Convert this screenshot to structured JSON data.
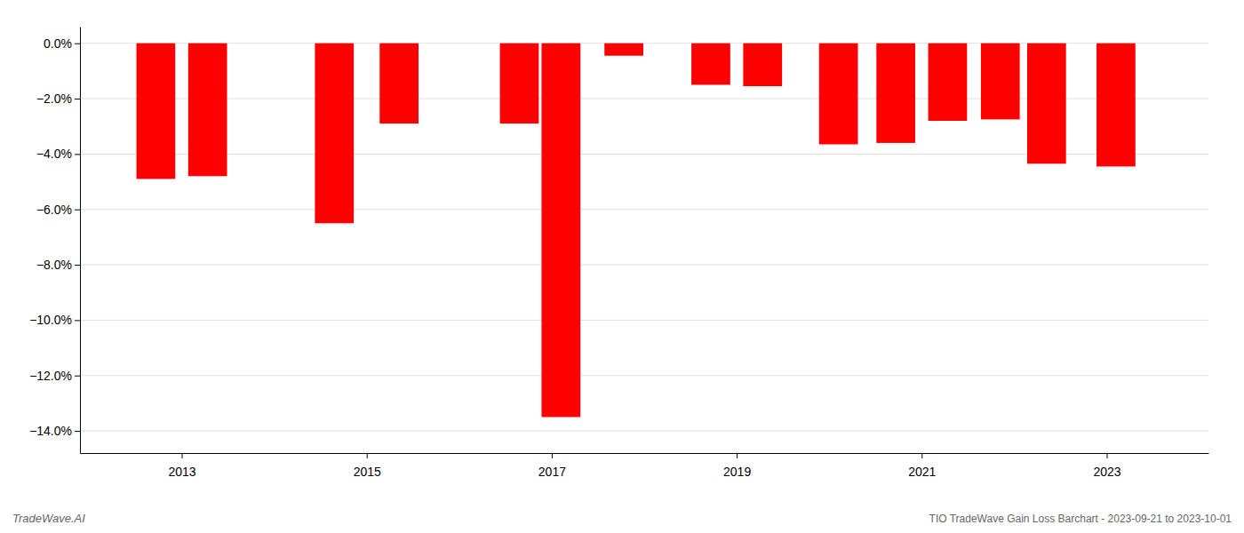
{
  "chart_data": {
    "type": "bar",
    "x": [
      2012.72,
      2013.28,
      2014.65,
      2015.35,
      2016.65,
      2017.1,
      2017.78,
      2018.72,
      2019.28,
      2020.1,
      2020.72,
      2021.28,
      2021.85,
      2022.35,
      2023.1
    ],
    "values": [
      -4.9,
      -4.8,
      -6.5,
      -2.9,
      -2.9,
      -13.5,
      -0.45,
      -1.5,
      -1.55,
      -3.65,
      -3.6,
      -2.8,
      -2.75,
      -4.35,
      -4.45
    ],
    "color": "#ff0000",
    "xlim": [
      2011.9,
      2024.1
    ],
    "xticks": [
      2013,
      2015,
      2017,
      2019,
      2021,
      2023
    ],
    "ylim": [
      -14.8,
      0.6
    ],
    "yticks": [
      {
        "value": 0.0,
        "label": "0.0%"
      },
      {
        "value": -2.0,
        "label": "−2.0%"
      },
      {
        "value": -4.0,
        "label": "−4.0%"
      },
      {
        "value": -6.0,
        "label": "−6.0%"
      },
      {
        "value": -8.0,
        "label": "−8.0%"
      },
      {
        "value": -10.0,
        "label": "−10.0%"
      },
      {
        "value": -12.0,
        "label": "−12.0%"
      },
      {
        "value": -14.0,
        "label": "−14.0%"
      }
    ],
    "grid": true,
    "annotations": [
      "TradeWave.AI",
      "TIO TradeWave Gain Loss Barchart - 2023-09-21 to 2023-10-01"
    ]
  }
}
